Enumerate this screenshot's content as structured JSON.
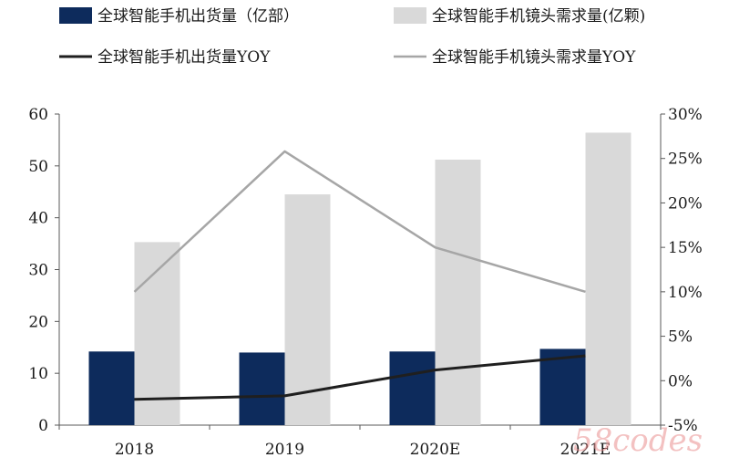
{
  "chart_data": {
    "type": "bar",
    "categories": [
      "2018",
      "2019",
      "2020E",
      "2021E"
    ],
    "series": [
      {
        "name": "全球智能手机出货量（亿部）",
        "type": "bar",
        "axis": "left",
        "color": "#0d2b5c",
        "values": [
          14.2,
          14.0,
          14.2,
          14.7
        ]
      },
      {
        "name": "全球智能手机镜头需求量(亿颗)",
        "type": "bar",
        "axis": "left",
        "color": "#d9d9d9",
        "values": [
          35.3,
          44.5,
          51.2,
          56.4
        ]
      },
      {
        "name": "全球智能手机出货量YOY",
        "type": "line",
        "axis": "right",
        "color": "#1f1f1f",
        "values": [
          -2.1,
          -1.7,
          1.2,
          2.8
        ]
      },
      {
        "name": "全球智能手机镜头需求量YOY",
        "type": "line",
        "axis": "right",
        "color": "#a6a6a6",
        "values": [
          10.0,
          25.8,
          15.0,
          10.0
        ]
      }
    ],
    "y_left": {
      "min": 0,
      "max": 60,
      "ticks": [
        "0",
        "10",
        "20",
        "30",
        "40",
        "50",
        "60"
      ]
    },
    "y_right": {
      "min": -5,
      "max": 30,
      "unit": "%",
      "ticks": [
        "-5%",
        "0%",
        "5%",
        "10%",
        "15%",
        "20%",
        "25%",
        "30%"
      ]
    },
    "legend_position": "top",
    "grid": false
  },
  "watermark": "58codes"
}
